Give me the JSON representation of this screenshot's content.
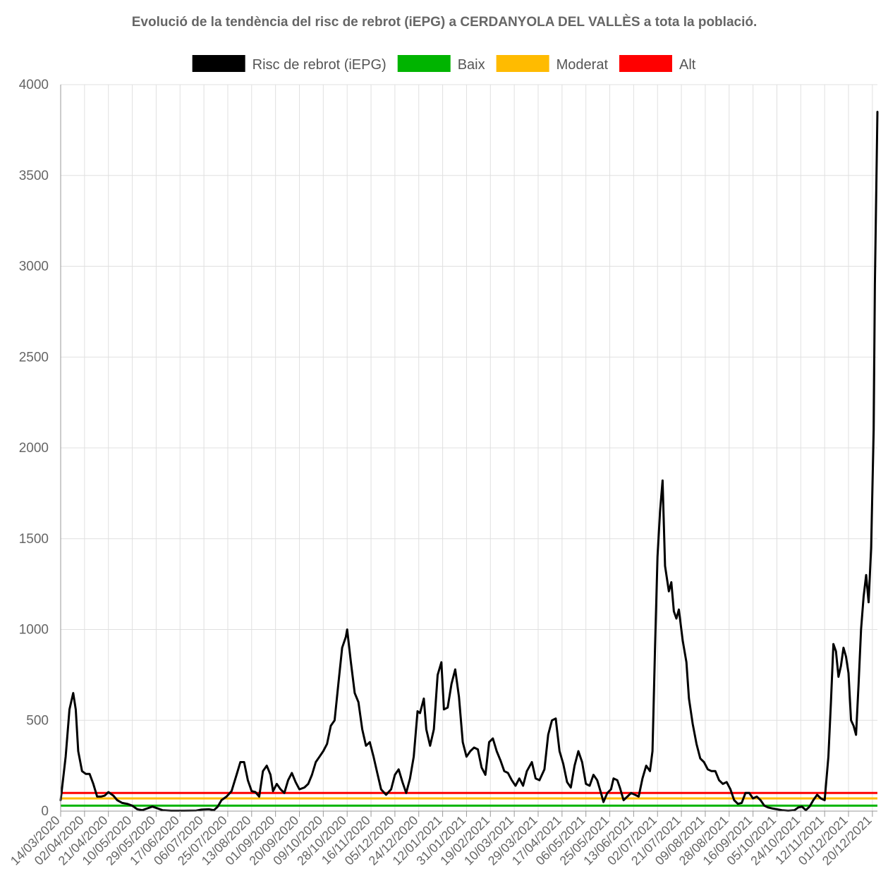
{
  "chart_data": {
    "type": "line",
    "title": "Evolució de la tendència del risc de rebrot (iEPG) a CERDANYOLA DEL VALLÈS a tota la població.",
    "xlabel": "",
    "ylabel": "",
    "ylim": [
      0,
      4000
    ],
    "yticks": [
      "0",
      "500",
      "1000",
      "1500",
      "2000",
      "2500",
      "3000",
      "3500",
      "4000"
    ],
    "x_tick_labels": [
      "14/03/2020",
      "02/04/2020",
      "21/04/2020",
      "10/05/2020",
      "29/05/2020",
      "17/06/2020",
      "06/07/2020",
      "25/07/2020",
      "13/08/2020",
      "01/09/2020",
      "20/09/2020",
      "09/10/2020",
      "28/10/2020",
      "16/11/2020",
      "05/12/2020",
      "24/12/2020",
      "12/01/2021",
      "31/01/2021",
      "19/02/2021",
      "10/03/2021",
      "29/03/2021",
      "17/04/2021",
      "06/05/2021",
      "25/05/2021",
      "13/06/2021",
      "02/07/2021",
      "21/07/2021",
      "09/08/2021",
      "28/08/2021",
      "16/09/2021",
      "05/10/2021",
      "24/10/2021",
      "12/11/2021",
      "01/12/2021",
      "20/12/2021"
    ],
    "x_start": "14/03/2020",
    "x_end": "24/12/2021",
    "grid": true,
    "legend_position": "top",
    "series": [
      {
        "name": "Risc de rebrot (iEPG)",
        "color": "#000000",
        "points": [
          [
            "14/03/2020",
            60
          ],
          [
            "18/03/2020",
            300
          ],
          [
            "21/03/2020",
            560
          ],
          [
            "24/03/2020",
            650
          ],
          [
            "26/03/2020",
            560
          ],
          [
            "28/03/2020",
            330
          ],
          [
            "31/03/2020",
            220
          ],
          [
            "03/04/2020",
            205
          ],
          [
            "06/04/2020",
            205
          ],
          [
            "09/04/2020",
            150
          ],
          [
            "12/04/2020",
            80
          ],
          [
            "15/04/2020",
            80
          ],
          [
            "18/04/2020",
            85
          ],
          [
            "21/04/2020",
            105
          ],
          [
            "25/04/2020",
            85
          ],
          [
            "28/04/2020",
            60
          ],
          [
            "02/05/2020",
            45
          ],
          [
            "06/05/2020",
            40
          ],
          [
            "10/05/2020",
            30
          ],
          [
            "14/05/2020",
            10
          ],
          [
            "18/05/2020",
            5
          ],
          [
            "22/05/2020",
            15
          ],
          [
            "26/05/2020",
            25
          ],
          [
            "30/05/2020",
            15
          ],
          [
            "03/06/2020",
            5
          ],
          [
            "10/06/2020",
            2
          ],
          [
            "20/06/2020",
            2
          ],
          [
            "30/06/2020",
            3
          ],
          [
            "04/07/2020",
            8
          ],
          [
            "10/07/2020",
            10
          ],
          [
            "14/07/2020",
            5
          ],
          [
            "17/07/2020",
            25
          ],
          [
            "20/07/2020",
            60
          ],
          [
            "24/07/2020",
            80
          ],
          [
            "28/07/2020",
            110
          ],
          [
            "01/08/2020",
            200
          ],
          [
            "04/08/2020",
            270
          ],
          [
            "07/08/2020",
            270
          ],
          [
            "10/08/2020",
            170
          ],
          [
            "13/08/2020",
            110
          ],
          [
            "16/08/2020",
            105
          ],
          [
            "19/08/2020",
            80
          ],
          [
            "22/08/2020",
            220
          ],
          [
            "25/08/2020",
            250
          ],
          [
            "28/08/2020",
            200
          ],
          [
            "30/08/2020",
            110
          ],
          [
            "02/09/2020",
            150
          ],
          [
            "05/09/2020",
            120
          ],
          [
            "08/09/2020",
            100
          ],
          [
            "11/09/2020",
            170
          ],
          [
            "14/09/2020",
            210
          ],
          [
            "17/09/2020",
            160
          ],
          [
            "20/09/2020",
            120
          ],
          [
            "24/09/2020",
            130
          ],
          [
            "27/09/2020",
            150
          ],
          [
            "30/09/2020",
            200
          ],
          [
            "03/10/2020",
            270
          ],
          [
            "06/10/2020",
            300
          ],
          [
            "09/10/2020",
            330
          ],
          [
            "12/10/2020",
            370
          ],
          [
            "15/10/2020",
            470
          ],
          [
            "18/10/2020",
            500
          ],
          [
            "21/10/2020",
            700
          ],
          [
            "24/10/2020",
            900
          ],
          [
            "27/10/2020",
            960
          ],
          [
            "28/10/2020",
            1000
          ],
          [
            "31/10/2020",
            820
          ],
          [
            "03/11/2020",
            650
          ],
          [
            "06/11/2020",
            600
          ],
          [
            "09/11/2020",
            450
          ],
          [
            "12/11/2020",
            360
          ],
          [
            "15/11/2020",
            380
          ],
          [
            "18/11/2020",
            300
          ],
          [
            "21/11/2020",
            210
          ],
          [
            "24/11/2020",
            120
          ],
          [
            "28/11/2020",
            90
          ],
          [
            "02/12/2020",
            120
          ],
          [
            "05/12/2020",
            200
          ],
          [
            "08/12/2020",
            230
          ],
          [
            "11/12/2020",
            160
          ],
          [
            "14/12/2020",
            100
          ],
          [
            "17/12/2020",
            180
          ],
          [
            "20/12/2020",
            300
          ],
          [
            "23/12/2020",
            550
          ],
          [
            "25/12/2020",
            540
          ],
          [
            "28/12/2020",
            620
          ],
          [
            "30/12/2020",
            450
          ],
          [
            "02/01/2021",
            360
          ],
          [
            "05/01/2021",
            450
          ],
          [
            "08/01/2021",
            750
          ],
          [
            "11/01/2021",
            820
          ],
          [
            "13/01/2021",
            560
          ],
          [
            "16/01/2021",
            570
          ],
          [
            "19/01/2021",
            700
          ],
          [
            "22/01/2021",
            780
          ],
          [
            "25/01/2021",
            630
          ],
          [
            "28/01/2021",
            380
          ],
          [
            "31/01/2021",
            300
          ],
          [
            "03/02/2021",
            330
          ],
          [
            "06/02/2021",
            350
          ],
          [
            "09/02/2021",
            340
          ],
          [
            "12/02/2021",
            240
          ],
          [
            "15/02/2021",
            200
          ],
          [
            "18/02/2021",
            380
          ],
          [
            "21/02/2021",
            400
          ],
          [
            "24/02/2021",
            330
          ],
          [
            "27/02/2021",
            280
          ],
          [
            "02/03/2021",
            220
          ],
          [
            "05/03/2021",
            210
          ],
          [
            "08/03/2021",
            170
          ],
          [
            "11/03/2021",
            140
          ],
          [
            "14/03/2021",
            180
          ],
          [
            "17/03/2021",
            140
          ],
          [
            "20/03/2021",
            220
          ],
          [
            "24/03/2021",
            270
          ],
          [
            "27/03/2021",
            180
          ],
          [
            "30/03/2021",
            170
          ],
          [
            "03/04/2021",
            230
          ],
          [
            "06/04/2021",
            420
          ],
          [
            "09/04/2021",
            500
          ],
          [
            "12/04/2021",
            510
          ],
          [
            "15/04/2021",
            330
          ],
          [
            "18/04/2021",
            260
          ],
          [
            "21/04/2021",
            160
          ],
          [
            "24/04/2021",
            130
          ],
          [
            "27/04/2021",
            250
          ],
          [
            "30/04/2021",
            330
          ],
          [
            "03/05/2021",
            270
          ],
          [
            "06/05/2021",
            150
          ],
          [
            "09/05/2021",
            140
          ],
          [
            "12/05/2021",
            200
          ],
          [
            "15/05/2021",
            170
          ],
          [
            "18/05/2021",
            100
          ],
          [
            "20/05/2021",
            50
          ],
          [
            "23/05/2021",
            100
          ],
          [
            "26/05/2021",
            120
          ],
          [
            "28/05/2021",
            180
          ],
          [
            "31/05/2021",
            170
          ],
          [
            "02/06/2021",
            130
          ],
          [
            "05/06/2021",
            60
          ],
          [
            "08/06/2021",
            80
          ],
          [
            "11/06/2021",
            100
          ],
          [
            "14/06/2021",
            90
          ],
          [
            "17/06/2021",
            80
          ],
          [
            "20/06/2021",
            180
          ],
          [
            "23/06/2021",
            250
          ],
          [
            "26/06/2021",
            220
          ],
          [
            "28/06/2021",
            330
          ],
          [
            "30/06/2021",
            900
          ],
          [
            "02/07/2021",
            1400
          ],
          [
            "04/07/2021",
            1650
          ],
          [
            "06/07/2021",
            1820
          ],
          [
            "08/07/2021",
            1350
          ],
          [
            "11/07/2021",
            1210
          ],
          [
            "13/07/2021",
            1260
          ],
          [
            "15/07/2021",
            1100
          ],
          [
            "17/07/2021",
            1060
          ],
          [
            "19/07/2021",
            1110
          ],
          [
            "22/07/2021",
            940
          ],
          [
            "25/07/2021",
            820
          ],
          [
            "27/07/2021",
            620
          ],
          [
            "30/07/2021",
            480
          ],
          [
            "02/08/2021",
            370
          ],
          [
            "05/08/2021",
            290
          ],
          [
            "08/08/2021",
            270
          ],
          [
            "11/08/2021",
            230
          ],
          [
            "14/08/2021",
            220
          ],
          [
            "17/08/2021",
            220
          ],
          [
            "20/08/2021",
            170
          ],
          [
            "23/08/2021",
            150
          ],
          [
            "26/08/2021",
            160
          ],
          [
            "29/08/2021",
            120
          ],
          [
            "01/09/2021",
            60
          ],
          [
            "04/09/2021",
            40
          ],
          [
            "07/09/2021",
            45
          ],
          [
            "10/09/2021",
            100
          ],
          [
            "13/09/2021",
            100
          ],
          [
            "16/09/2021",
            70
          ],
          [
            "19/09/2021",
            80
          ],
          [
            "22/09/2021",
            60
          ],
          [
            "25/09/2021",
            30
          ],
          [
            "28/09/2021",
            20
          ],
          [
            "01/10/2021",
            15
          ],
          [
            "05/10/2021",
            10
          ],
          [
            "09/10/2021",
            5
          ],
          [
            "14/10/2021",
            2
          ],
          [
            "19/10/2021",
            5
          ],
          [
            "22/10/2021",
            20
          ],
          [
            "25/10/2021",
            25
          ],
          [
            "28/10/2021",
            5
          ],
          [
            "31/10/2021",
            25
          ],
          [
            "03/11/2021",
            60
          ],
          [
            "06/11/2021",
            90
          ],
          [
            "09/11/2021",
            70
          ],
          [
            "12/11/2021",
            60
          ],
          [
            "15/11/2021",
            300
          ],
          [
            "17/11/2021",
            600
          ],
          [
            "19/11/2021",
            920
          ],
          [
            "21/11/2021",
            880
          ],
          [
            "23/11/2021",
            740
          ],
          [
            "25/11/2021",
            800
          ],
          [
            "27/11/2021",
            900
          ],
          [
            "29/11/2021",
            850
          ],
          [
            "01/12/2021",
            760
          ],
          [
            "03/12/2021",
            500
          ],
          [
            "05/12/2021",
            470
          ],
          [
            "07/12/2021",
            420
          ],
          [
            "09/12/2021",
            700
          ],
          [
            "11/12/2021",
            1000
          ],
          [
            "13/12/2021",
            1180
          ],
          [
            "15/12/2021",
            1300
          ],
          [
            "17/12/2021",
            1150
          ],
          [
            "19/12/2021",
            1450
          ],
          [
            "21/12/2021",
            2100
          ],
          [
            "22/12/2021",
            2900
          ],
          [
            "24/12/2021",
            3850
          ]
        ]
      },
      {
        "name": "Baix",
        "color": "#00b400",
        "constant": 30
      },
      {
        "name": "Moderat",
        "color": "#ffbb00",
        "constant": 70
      },
      {
        "name": "Alt",
        "color": "#ff0000",
        "constant": 100
      }
    ]
  }
}
